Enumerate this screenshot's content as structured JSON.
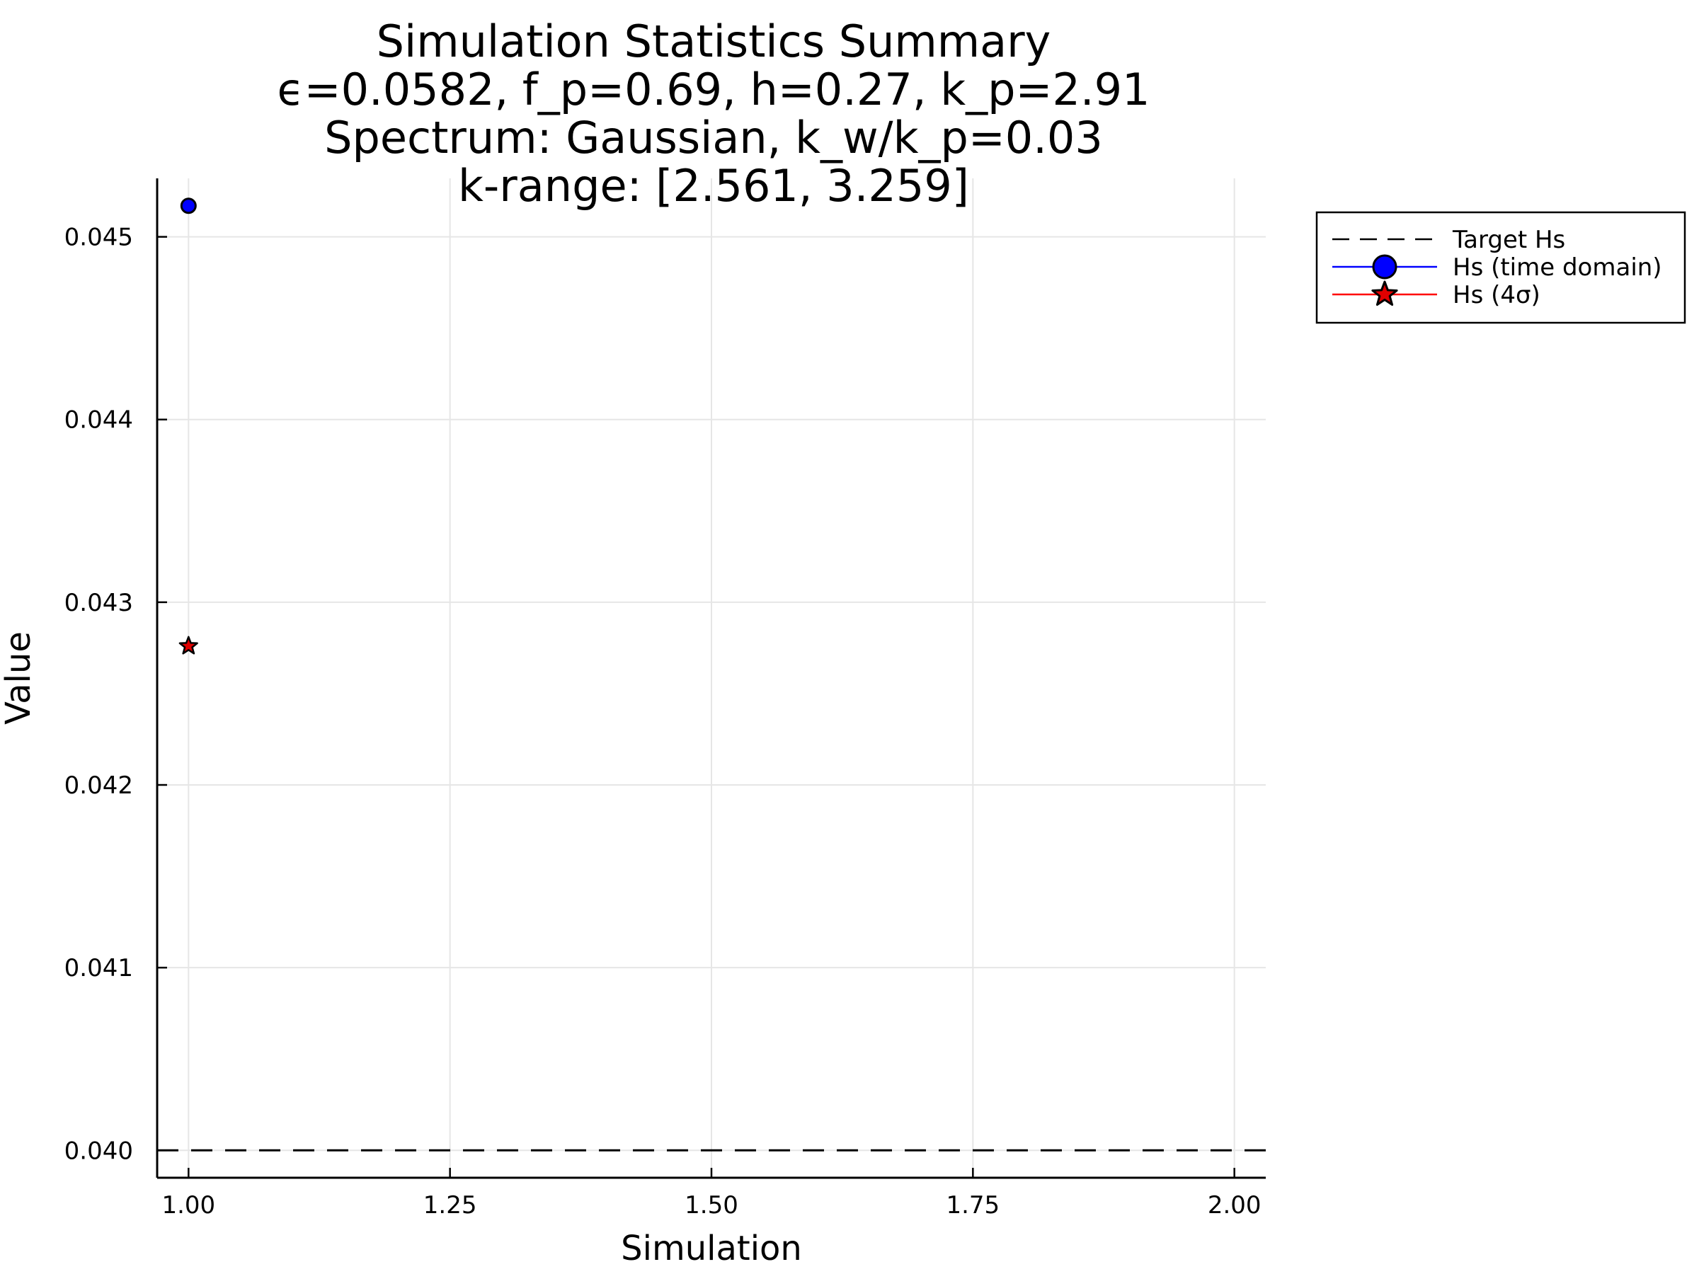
{
  "chart_data": {
    "type": "scatter",
    "title": "Simulation Statistics Summary",
    "subtitle_lines": [
      "ϵ=0.0582, f_p=0.69, h=0.27, k_p=2.91",
      "Spectrum: Gaussian, k_w/k_p=0.03",
      "k-range: [2.561, 3.259]"
    ],
    "xlabel": "Simulation",
    "ylabel": "Value",
    "xlim": [
      0.97,
      2.03
    ],
    "ylim": [
      0.03985,
      0.04532
    ],
    "xticks": [
      1.0,
      1.25,
      1.5,
      1.75,
      2.0
    ],
    "xtick_labels": [
      "1.00",
      "1.25",
      "1.50",
      "1.75",
      "2.00"
    ],
    "yticks": [
      0.04,
      0.041,
      0.042,
      0.043,
      0.044,
      0.045
    ],
    "ytick_labels": [
      "0.040",
      "0.041",
      "0.042",
      "0.043",
      "0.044",
      "0.045"
    ],
    "grid": true,
    "legend_position": "outside-top-right",
    "target_line": {
      "name": "Target Hs",
      "y": 0.04,
      "color": "#000000",
      "style": "dashed"
    },
    "series": [
      {
        "name": "Hs (time domain)",
        "marker": "circle",
        "color": "#0000ff",
        "line_color": "#0000ff",
        "x": [
          1.0
        ],
        "y": [
          0.04517
        ]
      },
      {
        "name": "Hs (4σ)",
        "marker": "star",
        "color": "#e00000",
        "line_color": "#ff0000",
        "x": [
          1.0
        ],
        "y": [
          0.04276
        ]
      }
    ]
  }
}
